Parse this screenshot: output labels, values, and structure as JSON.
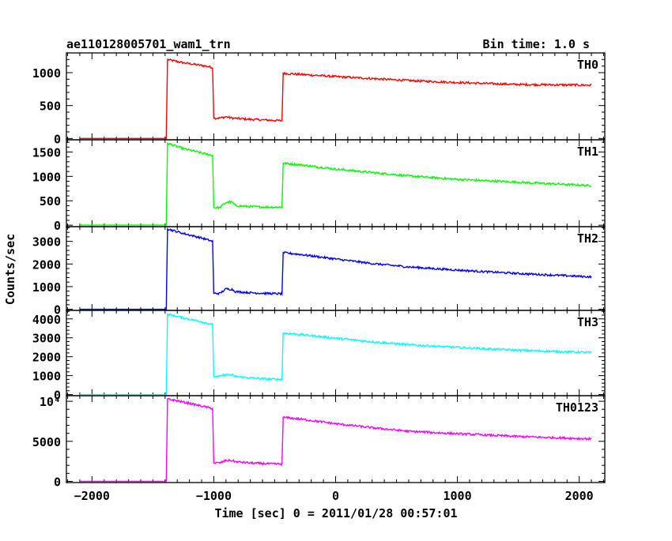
{
  "chart_data": {
    "type": "line",
    "title": "ae110128005701_wam1_trn",
    "bin_time_label": "Bin time: 1.0 s",
    "xlabel": "Time [sec] 0 = 2011/01/28 00:57:01",
    "ylabel": "Counts/sec",
    "xlim": [
      -2210,
      2210
    ],
    "x_ticks": [
      -2000,
      -1000,
      0,
      1000,
      2000
    ],
    "x_tick_labels": [
      "−2000",
      "−1000",
      "0",
      "1000",
      "2000"
    ],
    "grid": false,
    "legend": "panel labels at top-right of each panel",
    "panels": [
      {
        "name": "TH0",
        "color": "#ff0000",
        "ylim": [
          -20,
          1300
        ],
        "y_ticks": [
          0,
          500,
          1000
        ],
        "y_tick_labels": [
          "0",
          "500",
          "1000"
        ],
        "points": [
          [
            -2100,
            0
          ],
          [
            -1390,
            0
          ],
          [
            -1380,
            1200
          ],
          [
            -1250,
            1150
          ],
          [
            -1100,
            1110
          ],
          [
            -1010,
            1080
          ],
          [
            -1000,
            310
          ],
          [
            -950,
            310
          ],
          [
            -900,
            330
          ],
          [
            -850,
            310
          ],
          [
            -700,
            290
          ],
          [
            -560,
            280
          ],
          [
            -440,
            270
          ],
          [
            -430,
            990
          ],
          [
            -300,
            975
          ],
          [
            0,
            940
          ],
          [
            300,
            910
          ],
          [
            600,
            880
          ],
          [
            1000,
            850
          ],
          [
            1500,
            820
          ],
          [
            2100,
            810
          ]
        ]
      },
      {
        "name": "TH1",
        "color": "#00ff00",
        "ylim": [
          -30,
          1750
        ],
        "y_ticks": [
          0,
          500,
          1000,
          1500
        ],
        "y_tick_labels": [
          "0",
          "500",
          "1000",
          "1500"
        ],
        "points": [
          [
            -2100,
            0
          ],
          [
            -1390,
            0
          ],
          [
            -1380,
            1680
          ],
          [
            -1250,
            1570
          ],
          [
            -1100,
            1480
          ],
          [
            -1010,
            1430
          ],
          [
            -1000,
            360
          ],
          [
            -950,
            360
          ],
          [
            -900,
            470
          ],
          [
            -850,
            470
          ],
          [
            -820,
            400
          ],
          [
            -700,
            380
          ],
          [
            -560,
            370
          ],
          [
            -440,
            370
          ],
          [
            -430,
            1270
          ],
          [
            -300,
            1240
          ],
          [
            0,
            1150
          ],
          [
            300,
            1080
          ],
          [
            600,
            1010
          ],
          [
            1000,
            940
          ],
          [
            1500,
            880
          ],
          [
            2100,
            810
          ]
        ]
      },
      {
        "name": "TH2",
        "color": "#0000ff",
        "ylim": [
          -50,
          3650
        ],
        "y_ticks": [
          0,
          1000,
          2000,
          3000
        ],
        "y_tick_labels": [
          "0",
          "1000",
          "2000",
          "3000"
        ],
        "points": [
          [
            -2100,
            0
          ],
          [
            -1390,
            0
          ],
          [
            -1380,
            3550
          ],
          [
            -1250,
            3350
          ],
          [
            -1100,
            3150
          ],
          [
            -1010,
            3000
          ],
          [
            -1000,
            700
          ],
          [
            -950,
            700
          ],
          [
            -900,
            900
          ],
          [
            -850,
            880
          ],
          [
            -820,
            780
          ],
          [
            -700,
            730
          ],
          [
            -560,
            700
          ],
          [
            -440,
            680
          ],
          [
            -430,
            2500
          ],
          [
            -300,
            2430
          ],
          [
            0,
            2220
          ],
          [
            300,
            2020
          ],
          [
            600,
            1870
          ],
          [
            1000,
            1730
          ],
          [
            1500,
            1580
          ],
          [
            2100,
            1430
          ]
        ]
      },
      {
        "name": "TH3",
        "color": "#00ffff",
        "ylim": [
          -60,
          4450
        ],
        "y_ticks": [
          0,
          1000,
          2000,
          3000,
          4000
        ],
        "y_tick_labels": [
          "0",
          "1000",
          "2000",
          "3000",
          "4000"
        ],
        "points": [
          [
            -2100,
            0
          ],
          [
            -1390,
            0
          ],
          [
            -1380,
            4250
          ],
          [
            -1250,
            4050
          ],
          [
            -1100,
            3850
          ],
          [
            -1010,
            3700
          ],
          [
            -1000,
            950
          ],
          [
            -950,
            950
          ],
          [
            -900,
            1050
          ],
          [
            -850,
            1030
          ],
          [
            -820,
            950
          ],
          [
            -700,
            880
          ],
          [
            -560,
            820
          ],
          [
            -440,
            800
          ],
          [
            -430,
            3250
          ],
          [
            -300,
            3180
          ],
          [
            0,
            2980
          ],
          [
            300,
            2790
          ],
          [
            600,
            2630
          ],
          [
            1000,
            2490
          ],
          [
            1500,
            2340
          ],
          [
            2100,
            2220
          ]
        ]
      },
      {
        "name": "TH0123",
        "color": "#ff00ff",
        "ylim": [
          -150,
          10700
        ],
        "y_ticks": [
          0,
          5000,
          10000
        ],
        "y_tick_labels": [
          "0",
          "5000",
          "10⁴"
        ],
        "points": [
          [
            -2100,
            0
          ],
          [
            -1390,
            0
          ],
          [
            -1380,
            10300
          ],
          [
            -1250,
            9900
          ],
          [
            -1100,
            9400
          ],
          [
            -1010,
            9100
          ],
          [
            -1000,
            2300
          ],
          [
            -950,
            2300
          ],
          [
            -900,
            2600
          ],
          [
            -850,
            2600
          ],
          [
            -820,
            2450
          ],
          [
            -700,
            2300
          ],
          [
            -560,
            2200
          ],
          [
            -440,
            2150
          ],
          [
            -430,
            8000
          ],
          [
            -300,
            7800
          ],
          [
            0,
            7200
          ],
          [
            300,
            6700
          ],
          [
            600,
            6250
          ],
          [
            1000,
            5950
          ],
          [
            1500,
            5600
          ],
          [
            2100,
            5300
          ]
        ]
      }
    ]
  }
}
